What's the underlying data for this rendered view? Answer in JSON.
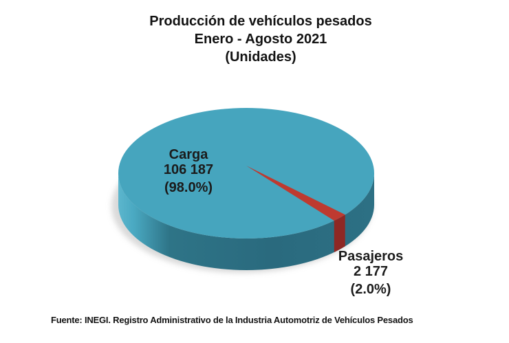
{
  "chart_data": {
    "type": "pie",
    "is_3d": true,
    "title": "Producción de vehículos pesados",
    "subtitle": "Enero - Agosto 2021",
    "units": "(Unidades)",
    "legend_position": "none",
    "labels_on_chart": true,
    "slices": [
      {
        "label": "Carga",
        "value": 106187,
        "value_text": "106 187",
        "pct": 98.0,
        "pct_text": "(98.0%)",
        "color_top": "#46a5be",
        "color_side": "#2b6c80"
      },
      {
        "label": "Pasajeros",
        "value": 2177,
        "value_text": "2 177",
        "pct": 2.0,
        "pct_text": "(2.0%)",
        "color_top": "#be3a30",
        "color_side": "#8e2824"
      }
    ],
    "pasajeros_mid_angle_deg": 43,
    "source": "Fuente: INEGI. Registro Administrativo de la Industria Automotriz de Vehículos Pesados"
  }
}
